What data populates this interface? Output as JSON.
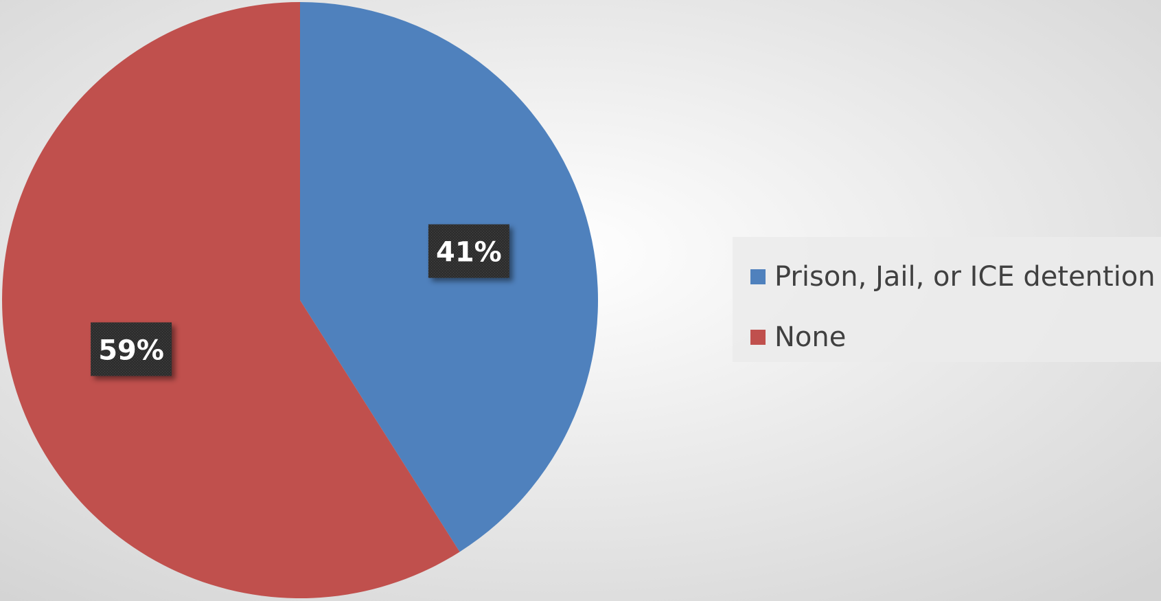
{
  "chart_data": {
    "type": "pie",
    "title": "",
    "start_angle": "12 o'clock",
    "direction": "clockwise",
    "slices": [
      {
        "label": "Prison, Jail, or ICE detention",
        "value": 41,
        "display": "41%",
        "color": "#4f81bd"
      },
      {
        "label": "None",
        "value": 59,
        "display": "59%",
        "color": "#c0504d"
      }
    ],
    "legend_position": "right",
    "data_label_style": "white bold text on dark box"
  },
  "background": {
    "gradient_from": "#ffffff",
    "gradient_to": "#d4d4d4"
  }
}
